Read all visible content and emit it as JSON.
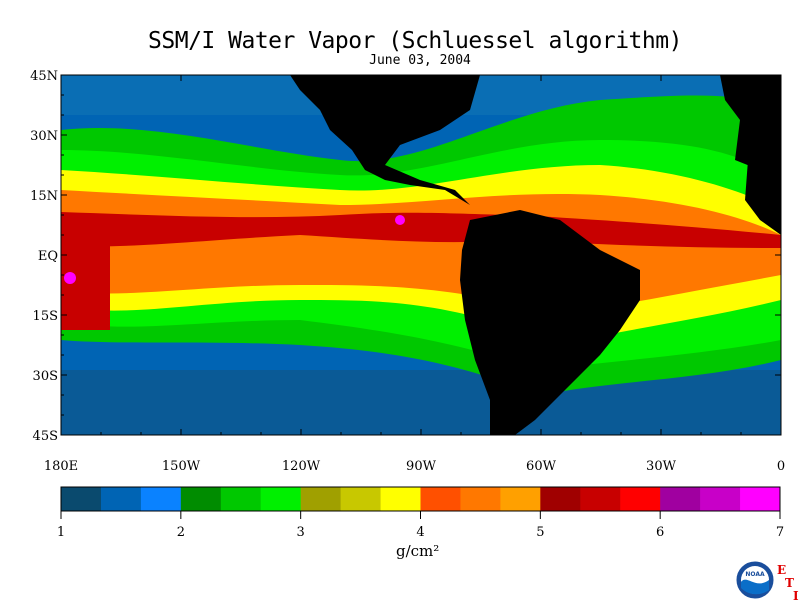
{
  "title": "SSM/I Water Vapor (Schluessel algorithm)",
  "date": "June 03, 2004",
  "lat_labels": [
    "45N",
    "30N",
    "15N",
    "EQ",
    "15S",
    "30S",
    "45S"
  ],
  "lon_labels": [
    "180E",
    "150W",
    "120W",
    "90W",
    "60W",
    "30W",
    "0"
  ],
  "colorbar": {
    "colors": [
      "#0a4a6e",
      "#0064b4",
      "#0a82ff",
      "#008c00",
      "#00c800",
      "#00f000",
      "#a0a000",
      "#c8c800",
      "#ffff00",
      "#ff5000",
      "#ff7800",
      "#ffa000",
      "#a00000",
      "#c80000",
      "#ff0000",
      "#a000a0",
      "#c800c8",
      "#ff00ff"
    ],
    "ticks": [
      "1",
      "2",
      "3",
      "4",
      "5",
      "6",
      "7"
    ],
    "units": "g/cm²"
  },
  "logo": {
    "name": "NOAA",
    "side_letters": [
      "E",
      "T",
      "I"
    ]
  },
  "map_colors": {
    "land": "#000000",
    "dry": "#0064b4",
    "drier": "#0a4a6e",
    "moderate": "#00c800",
    "moist": "#ffff00",
    "wet": "#ff7800",
    "very_wet": "#c80000",
    "max": "#ff00ff"
  }
}
